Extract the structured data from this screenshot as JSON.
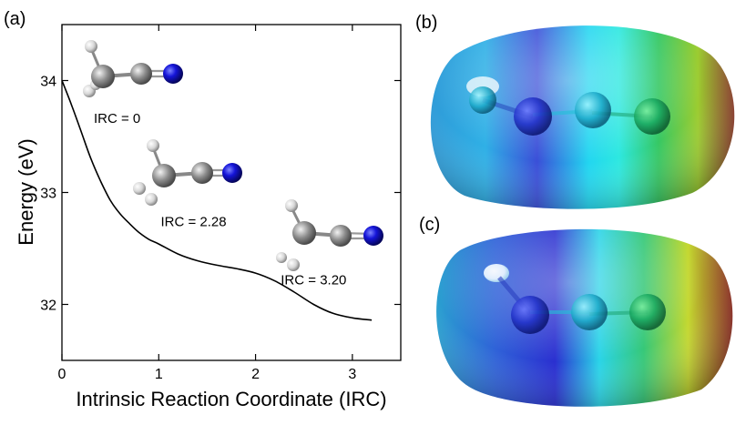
{
  "panels": {
    "a": "(a)",
    "b": "(b)",
    "c": "(c)"
  },
  "chart_data": {
    "type": "line",
    "xlabel": "Intrinsic Reaction Coordinate (IRC)",
    "ylabel": "Energy (eV)",
    "xlim": [
      0,
      3.5
    ],
    "ylim": [
      31.5,
      34.5
    ],
    "xticks": [
      0,
      1,
      2,
      3
    ],
    "yticks": [
      32,
      33,
      34
    ],
    "grid": false,
    "series": [
      {
        "x": [
          0,
          0.1,
          0.2,
          0.3,
          0.4,
          0.5,
          0.6,
          0.7,
          0.8,
          0.9,
          1.0,
          1.2,
          1.4,
          1.6,
          1.8,
          2.0,
          2.2,
          2.4,
          2.6,
          2.8,
          3.0,
          3.2
        ],
        "y": [
          34.0,
          33.78,
          33.54,
          33.3,
          33.1,
          32.93,
          32.81,
          32.72,
          32.64,
          32.58,
          32.54,
          32.45,
          32.39,
          32.35,
          32.32,
          32.28,
          32.21,
          32.11,
          32.0,
          31.92,
          31.88,
          31.86
        ]
      }
    ],
    "annotations": [
      {
        "text": "IRC = 0",
        "x": 0.57,
        "y": 33.62
      },
      {
        "text": "IRC = 2.28",
        "x": 1.36,
        "y": 32.7
      },
      {
        "text": "IRC = 3.20",
        "x": 2.6,
        "y": 32.18
      }
    ]
  }
}
